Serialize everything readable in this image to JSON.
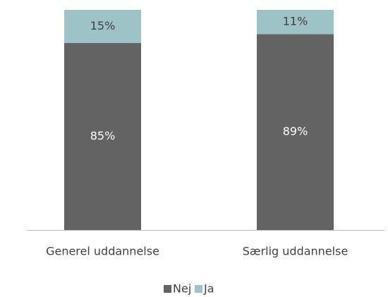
{
  "chart_data": {
    "type": "stacked_bar",
    "categories": [
      "Generel uddannelse",
      "Særlig uddannelse"
    ],
    "series": [
      {
        "name": "Nej",
        "color": "#636363",
        "values": [
          85,
          89
        ],
        "value_labels": [
          "85%",
          "89%"
        ],
        "label_color": "#ffffff"
      },
      {
        "name": "Ja",
        "color": "#9dc3c6",
        "values": [
          15,
          11
        ],
        "value_labels": [
          "15%",
          "11%"
        ],
        "label_color": "#404040"
      }
    ],
    "ylim": [
      0,
      100
    ],
    "legend": "bottom"
  }
}
